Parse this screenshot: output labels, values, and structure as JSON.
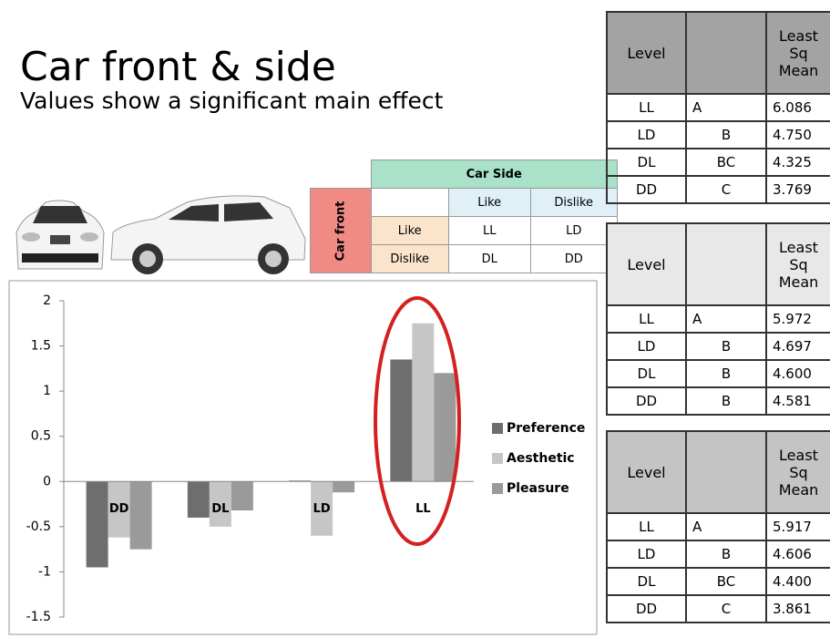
{
  "title": "Car front & side",
  "subtitle": "Values show a significant main effect",
  "design_table": {
    "column_header": "Car Side",
    "row_header": "Car front",
    "columns": [
      "Like",
      "Dislike"
    ],
    "rows": [
      {
        "label": "Like",
        "cells": [
          "LL",
          "LD"
        ]
      },
      {
        "label": "Dislike",
        "cells": [
          "DL",
          "DD"
        ]
      }
    ]
  },
  "lsm_tables": [
    {
      "header": [
        "Level",
        "Least Sq Mean"
      ],
      "rows": [
        [
          "LL",
          "A",
          "6.086"
        ],
        [
          "LD",
          "B",
          "4.750"
        ],
        [
          "DL",
          "BC",
          "4.325"
        ],
        [
          "DD",
          "C",
          "3.769"
        ]
      ]
    },
    {
      "header": [
        "Level",
        "Least Sq Mean"
      ],
      "rows": [
        [
          "LL",
          "A",
          "5.972"
        ],
        [
          "LD",
          "B",
          "4.697"
        ],
        [
          "DL",
          "B",
          "4.600"
        ],
        [
          "DD",
          "B",
          "4.581"
        ]
      ]
    },
    {
      "header": [
        "Level",
        "Least Sq Mean"
      ],
      "rows": [
        [
          "LL",
          "A",
          "5.917"
        ],
        [
          "LD",
          "B",
          "4.606"
        ],
        [
          "DL",
          "BC",
          "4.400"
        ],
        [
          "DD",
          "C",
          "3.861"
        ]
      ]
    }
  ],
  "chart_data": {
    "type": "bar",
    "categories": [
      "DD",
      "DL",
      "LD",
      "LL"
    ],
    "series": [
      {
        "name": "Preference",
        "color": "#6e6e6e",
        "values": [
          -0.95,
          -0.4,
          0.01,
          1.35
        ]
      },
      {
        "name": "Aesthetic",
        "color": "#c6c6c6",
        "values": [
          -0.62,
          -0.5,
          -0.6,
          1.75
        ]
      },
      {
        "name": "Pleasure",
        "color": "#9a9a9a",
        "values": [
          -0.75,
          -0.32,
          -0.12,
          1.2
        ]
      }
    ],
    "ylim": [
      -1.5,
      2
    ],
    "yticks": [
      -1.5,
      -1,
      -0.5,
      0,
      0.5,
      1,
      1.5,
      2
    ],
    "grid": false,
    "legend": "right"
  }
}
